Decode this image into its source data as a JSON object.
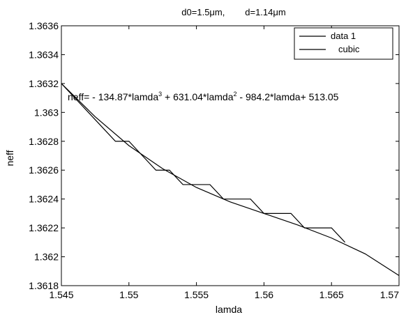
{
  "chart_data": {
    "type": "line",
    "title": "d0=1.5μm,        d=1.14μm",
    "xlabel": "lamda",
    "ylabel": "neff",
    "xlim": [
      1.545,
      1.57
    ],
    "ylim": [
      1.3618,
      1.3636
    ],
    "x_ticks": [
      "1.545",
      "1.55",
      "1.555",
      "1.56",
      "1.565",
      "1.57"
    ],
    "y_ticks": [
      "1.3618",
      "1.362",
      "1.3622",
      "1.3624",
      "1.3626",
      "1.3628",
      "1.363",
      "1.3632",
      "1.3634",
      "1.3636"
    ],
    "grid": false,
    "legend_position": "top-right",
    "series": [
      {
        "name": "data 1",
        "x": [
          1.545,
          1.546,
          1.547,
          1.548,
          1.549,
          1.55,
          1.551,
          1.552,
          1.553,
          1.554,
          1.555,
          1.556,
          1.557,
          1.558,
          1.559,
          1.56,
          1.561,
          1.562,
          1.563,
          1.564,
          1.565,
          1.566
        ],
        "y": [
          1.3632,
          1.3631,
          1.363,
          1.3629,
          1.3628,
          1.3628,
          1.3627,
          1.3626,
          1.3626,
          1.3625,
          1.3625,
          1.3625,
          1.3624,
          1.3624,
          1.3624,
          1.3623,
          1.3623,
          1.3623,
          1.3622,
          1.3622,
          1.3622,
          1.3621
        ]
      },
      {
        "name": "cubic",
        "x": [
          1.545,
          1.5475,
          1.55,
          1.5525,
          1.555,
          1.5575,
          1.56,
          1.5625,
          1.565,
          1.5675,
          1.57
        ],
        "y": [
          1.3632,
          1.36297,
          1.36277,
          1.36261,
          1.36248,
          1.36238,
          1.3623,
          1.36222,
          1.36213,
          1.36202,
          1.36187
        ]
      }
    ],
    "annotation": {
      "prefix": "neff= - 134.87*lamda",
      "exp1": "3",
      "mid": " + 631.04*lamda",
      "exp2": "2",
      "suffix": " - 984.2*lamda+ 513.05"
    }
  }
}
